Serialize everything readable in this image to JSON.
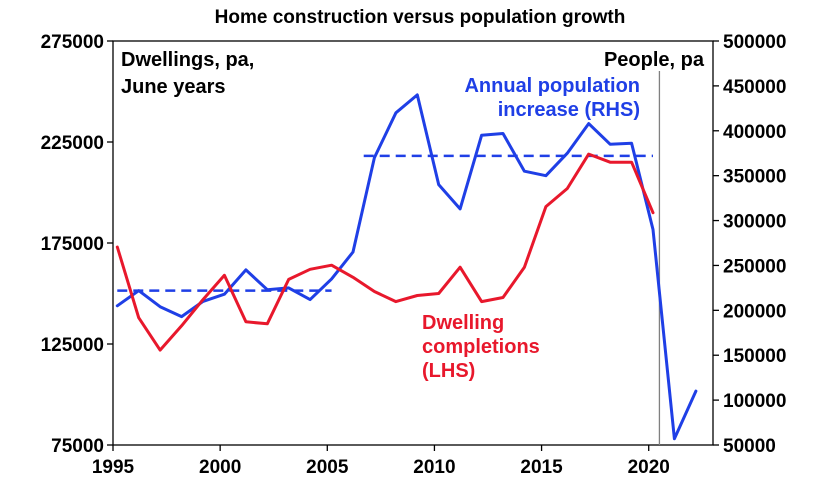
{
  "chart_data": {
    "type": "line",
    "title": "Home construction versus population growth",
    "left_axis_label": [
      "Dwellings, pa,",
      "June years"
    ],
    "right_axis_label": "People, pa",
    "x_ticks": [
      "1995",
      "2000",
      "2005",
      "2010",
      "2015",
      "2020"
    ],
    "x_range": [
      1995,
      2023
    ],
    "y_left": {
      "range": [
        75000,
        275000
      ],
      "ticks": [
        "75000",
        "125000",
        "175000",
        "225000",
        "275000"
      ]
    },
    "y_right": {
      "range": [
        50000,
        500000
      ],
      "ticks": [
        "50000",
        "100000",
        "150000",
        "200000",
        "250000",
        "300000",
        "350000",
        "400000",
        "450000",
        "500000"
      ]
    },
    "series": [
      {
        "name": "Annual population increase (RHS)",
        "label_lines": [
          "Annual population",
          "increase (RHS)"
        ],
        "axis": "right",
        "color": "#1f3fe6",
        "x": [
          1995.2,
          1996.2,
          1997.2,
          1998.2,
          1999.2,
          2000.2,
          2001.2,
          2002.2,
          2003.2,
          2004.2,
          2005.2,
          2006.2,
          2007.2,
          2008.2,
          2009.2,
          2010.2,
          2011.2,
          2012.2,
          2013.2,
          2014.2,
          2015.2,
          2016.2,
          2017.2,
          2018.2,
          2019.2,
          2020.2,
          2021.2,
          2022.2
        ],
        "y": [
          205000,
          222000,
          204000,
          193000,
          210000,
          218000,
          245000,
          223000,
          225000,
          212000,
          235000,
          265000,
          370000,
          420000,
          440000,
          340000,
          313000,
          395000,
          397000,
          355000,
          350000,
          375000,
          408000,
          385000,
          386000,
          290000,
          57000,
          110000
        ]
      },
      {
        "name": "Dwelling completions (LHS)",
        "label_lines": [
          "Dwelling",
          "completions",
          "(LHS)"
        ],
        "axis": "left",
        "color": "#e8182c",
        "x": [
          1995.2,
          1996.2,
          1997.2,
          1998.2,
          1999.2,
          2000.2,
          2001.2,
          2002.2,
          2003.2,
          2004.2,
          2005.2,
          2006.2,
          2007.2,
          2008.2,
          2009.2,
          2010.2,
          2011.2,
          2012.2,
          2013.2,
          2014.2,
          2015.2,
          2016.2,
          2017.2,
          2018.2,
          2019.2,
          2020.2
        ],
        "y": [
          173000,
          138000,
          122000,
          134000,
          147000,
          159000,
          136000,
          135000,
          157000,
          162000,
          164000,
          158000,
          151000,
          146000,
          149000,
          150000,
          163000,
          146000,
          148000,
          163000,
          193000,
          202000,
          219000,
          215000,
          215000,
          190000
        ]
      }
    ],
    "reference_lines": [
      {
        "axis": "right",
        "value": 222000,
        "x_range": [
          1995.2,
          2005.2
        ],
        "style": "dashed",
        "color": "#1f3fe6"
      },
      {
        "axis": "right",
        "value": 372000,
        "x_range": [
          2006.7,
          2020.2
        ],
        "style": "dashed",
        "color": "#1f3fe6"
      }
    ],
    "vertical_marker": {
      "x": 2020.5,
      "color": "#808080"
    }
  }
}
